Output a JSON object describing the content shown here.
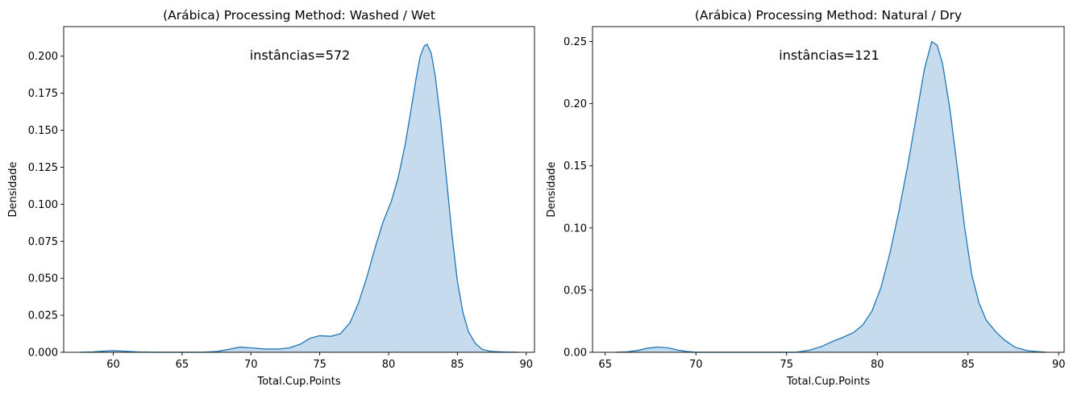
{
  "chart_data": [
    {
      "type": "area",
      "title": "(Arábica) Processing Method: Washed / Wet",
      "xlabel": "Total.Cup.Points",
      "ylabel": "Densidade",
      "annotation": "instâncias=572",
      "xlim": [
        56.4,
        90.6
      ],
      "ylim": [
        0,
        0.22
      ],
      "xticks": [
        60,
        65,
        70,
        75,
        80,
        85,
        90
      ],
      "xtick_labels": [
        "60",
        "65",
        "70",
        "75",
        "80",
        "85",
        "90"
      ],
      "yticks": [
        0,
        0.025,
        0.05,
        0.075,
        0.1,
        0.125,
        0.15,
        0.175,
        0.2
      ],
      "ytick_labels": [
        "0.000",
        "0.025",
        "0.050",
        "0.075",
        "0.100",
        "0.125",
        "0.150",
        "0.175",
        "0.200"
      ],
      "grid": false,
      "series": [
        {
          "color": "#1f77b4",
          "fill": "#c6dbed",
          "points": [
            [
              57.6,
              0.0
            ],
            [
              58.5,
              0.0002
            ],
            [
              59.2,
              0.0007
            ],
            [
              60.0,
              0.0011
            ],
            [
              60.8,
              0.0007
            ],
            [
              61.8,
              0.0002
            ],
            [
              63.0,
              0.0
            ],
            [
              66.5,
              0.0
            ],
            [
              67.5,
              0.0005
            ],
            [
              68.3,
              0.0018
            ],
            [
              69.2,
              0.0035
            ],
            [
              70.0,
              0.003
            ],
            [
              71.0,
              0.0022
            ],
            [
              72.0,
              0.0022
            ],
            [
              72.8,
              0.003
            ],
            [
              73.6,
              0.0055
            ],
            [
              74.3,
              0.0095
            ],
            [
              75.0,
              0.0112
            ],
            [
              75.8,
              0.0108
            ],
            [
              76.5,
              0.0125
            ],
            [
              77.2,
              0.02
            ],
            [
              77.8,
              0.033
            ],
            [
              78.4,
              0.05
            ],
            [
              79.0,
              0.07
            ],
            [
              79.6,
              0.088
            ],
            [
              80.2,
              0.102
            ],
            [
              80.7,
              0.118
            ],
            [
              81.2,
              0.14
            ],
            [
              81.6,
              0.162
            ],
            [
              82.0,
              0.185
            ],
            [
              82.3,
              0.2
            ],
            [
              82.6,
              0.207
            ],
            [
              82.8,
              0.208
            ],
            [
              83.1,
              0.202
            ],
            [
              83.4,
              0.186
            ],
            [
              83.8,
              0.155
            ],
            [
              84.2,
              0.118
            ],
            [
              84.6,
              0.08
            ],
            [
              85.0,
              0.048
            ],
            [
              85.4,
              0.027
            ],
            [
              85.8,
              0.014
            ],
            [
              86.3,
              0.006
            ],
            [
              86.8,
              0.002
            ],
            [
              87.5,
              0.0005
            ],
            [
              88.5,
              0.0001
            ],
            [
              89.4,
              0.0
            ]
          ]
        }
      ]
    },
    {
      "type": "area",
      "title": "(Arábica) Processing Method: Natural / Dry",
      "xlabel": "Total.Cup.Points",
      "ylabel": "Densidade",
      "annotation": "instâncias=121",
      "xlim": [
        64.3,
        90.3
      ],
      "ylim": [
        0,
        0.262
      ],
      "xticks": [
        65,
        70,
        75,
        80,
        85,
        90
      ],
      "xtick_labels": [
        "65",
        "70",
        "75",
        "80",
        "85",
        "90"
      ],
      "yticks": [
        0,
        0.05,
        0.1,
        0.15,
        0.2,
        0.25
      ],
      "ytick_labels": [
        "0.00",
        "0.05",
        "0.10",
        "0.15",
        "0.20",
        "0.25"
      ],
      "grid": false,
      "series": [
        {
          "color": "#1f77b4",
          "fill": "#c6dbed",
          "points": [
            [
              65.6,
              0.0
            ],
            [
              66.2,
              0.0003
            ],
            [
              66.8,
              0.0015
            ],
            [
              67.3,
              0.0032
            ],
            [
              67.9,
              0.0042
            ],
            [
              68.5,
              0.0035
            ],
            [
              69.0,
              0.0018
            ],
            [
              69.5,
              0.0006
            ],
            [
              70.0,
              0.0
            ],
            [
              75.5,
              0.0
            ],
            [
              76.2,
              0.0015
            ],
            [
              76.9,
              0.0045
            ],
            [
              77.5,
              0.0085
            ],
            [
              78.1,
              0.012
            ],
            [
              78.7,
              0.016
            ],
            [
              79.2,
              0.022
            ],
            [
              79.7,
              0.033
            ],
            [
              80.2,
              0.052
            ],
            [
              80.7,
              0.08
            ],
            [
              81.2,
              0.114
            ],
            [
              81.7,
              0.152
            ],
            [
              82.2,
              0.194
            ],
            [
              82.6,
              0.228
            ],
            [
              83.0,
              0.25
            ],
            [
              83.3,
              0.247
            ],
            [
              83.6,
              0.232
            ],
            [
              84.0,
              0.196
            ],
            [
              84.4,
              0.15
            ],
            [
              84.8,
              0.102
            ],
            [
              85.2,
              0.063
            ],
            [
              85.6,
              0.04
            ],
            [
              86.0,
              0.026
            ],
            [
              86.5,
              0.017
            ],
            [
              87.0,
              0.01
            ],
            [
              87.6,
              0.004
            ],
            [
              88.3,
              0.0012
            ],
            [
              89.3,
              0.0
            ]
          ]
        }
      ]
    }
  ]
}
